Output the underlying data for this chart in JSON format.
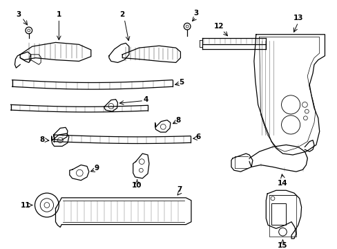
{
  "background_color": "#ffffff",
  "line_color": "#000000",
  "line_width": 0.9,
  "fig_width": 4.89,
  "fig_height": 3.6,
  "dpi": 100,
  "font_size": 7.5,
  "font_weight": "bold"
}
